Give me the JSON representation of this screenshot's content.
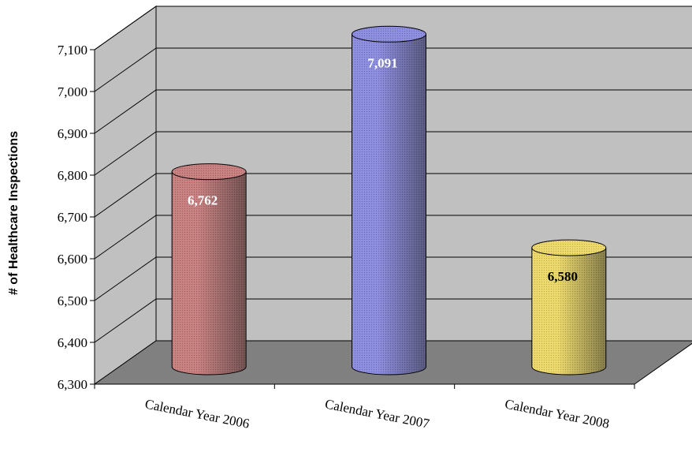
{
  "chart_data": {
    "type": "bar",
    "style": "3d-cylinder",
    "title": "",
    "xlabel": "",
    "ylabel": "# of Healthcare Inspections",
    "categories": [
      "Calendar Year 2006",
      "Calendar Year 2007",
      "Calendar Year 2008"
    ],
    "values": [
      6762,
      7091,
      6580
    ],
    "value_labels": [
      "6,762",
      "7,091",
      "6,580"
    ],
    "bar_colors": [
      "#c77f7f",
      "#8c8ce0",
      "#ecd96a"
    ],
    "value_label_colors": [
      "#ffffff",
      "#ffffff",
      "#000000"
    ],
    "ylim": [
      6300,
      7100
    ],
    "yticks": [
      6300,
      6400,
      6500,
      6600,
      6700,
      6800,
      6900,
      7000,
      7100
    ],
    "ytick_labels": [
      "6,300",
      "6,400",
      "6,500",
      "6,600",
      "6,700",
      "6,800",
      "6,900",
      "7,000",
      "7,100"
    ],
    "grid": true,
    "legend": "none",
    "wall_color": "#c0c0c0",
    "floor_color": "#808080"
  }
}
